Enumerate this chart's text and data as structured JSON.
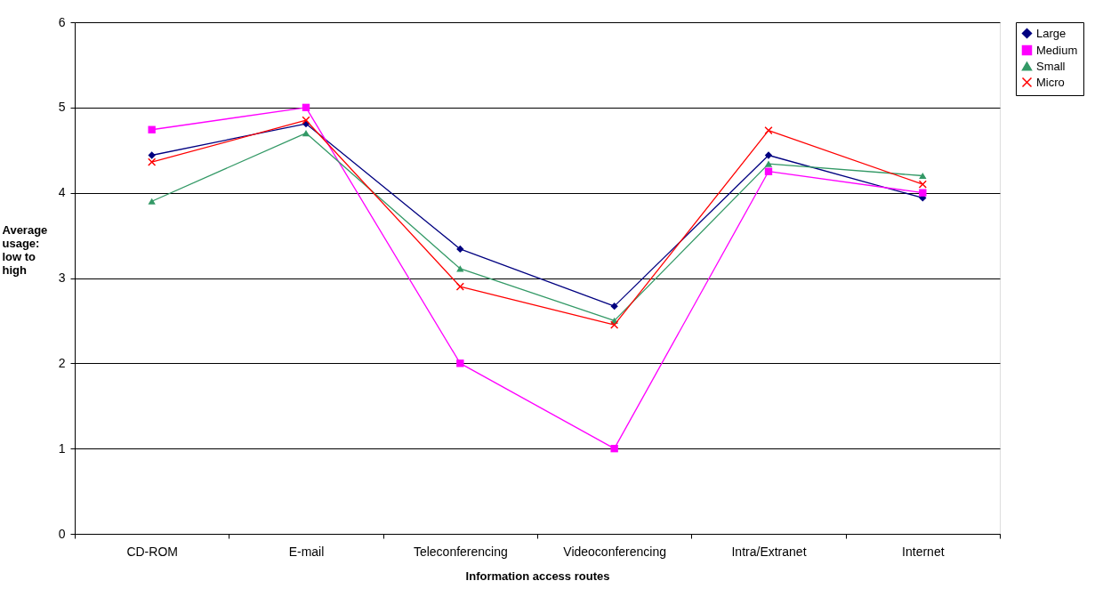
{
  "chart_data": {
    "type": "line",
    "xlabel": "Information access routes",
    "ylabel": "Average usage: low to high",
    "categories": [
      "CD-ROM",
      "E-mail",
      "Teleconferencing",
      "Videoconferencing",
      "Intra/Extranet",
      "Internet"
    ],
    "series": [
      {
        "name": "Large",
        "color": "#000080",
        "marker": "diamond",
        "values": [
          4.44,
          4.81,
          3.34,
          2.67,
          4.44,
          3.94
        ]
      },
      {
        "name": "Medium",
        "color": "#ff00ff",
        "marker": "square",
        "values": [
          4.74,
          5.0,
          2.0,
          1.0,
          4.25,
          4.0
        ]
      },
      {
        "name": "Small",
        "color": "#339966",
        "marker": "triangle",
        "values": [
          3.9,
          4.7,
          3.11,
          2.5,
          4.34,
          4.2
        ]
      },
      {
        "name": "Micro",
        "color": "#ff0000",
        "marker": "cross",
        "values": [
          4.36,
          4.85,
          2.9,
          2.45,
          4.73,
          4.1
        ]
      }
    ],
    "ylim": [
      0,
      6
    ],
    "yticks": [
      0,
      1,
      2,
      3,
      4,
      5,
      6
    ],
    "grid": "y",
    "legend": "right",
    "line_style": "solid"
  }
}
